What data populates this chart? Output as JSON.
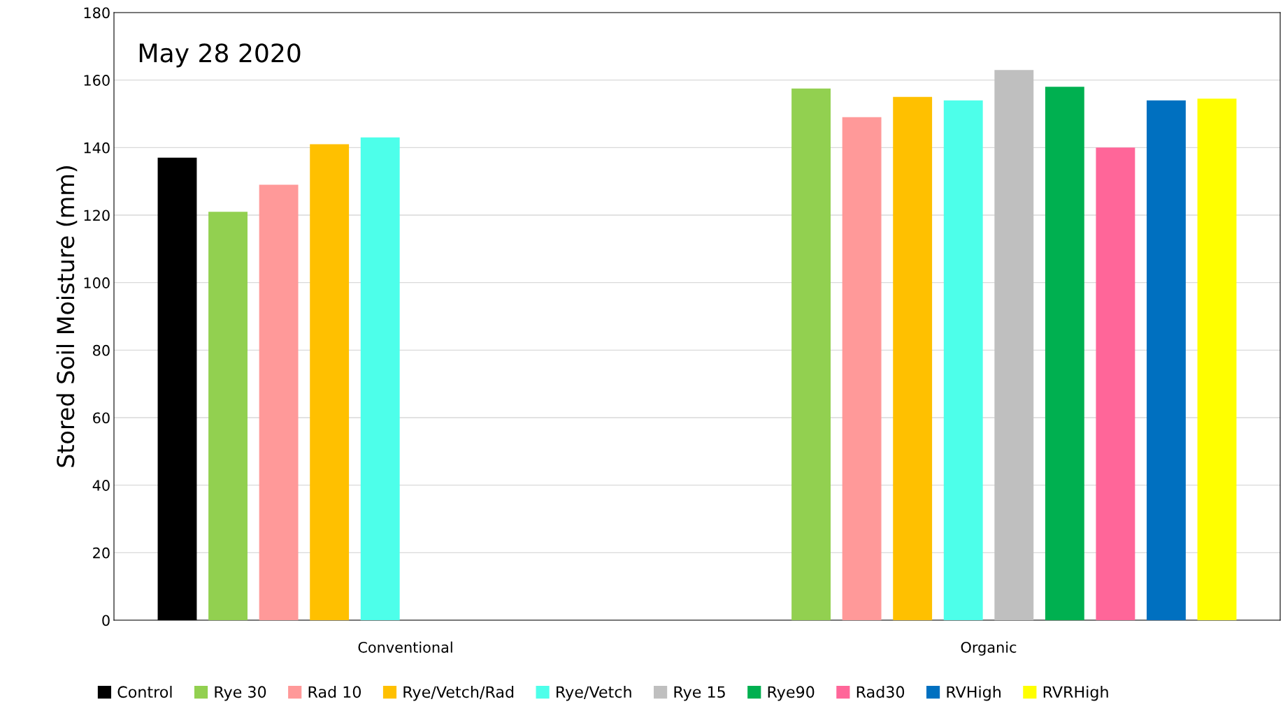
{
  "chart_data": {
    "type": "bar",
    "title": "May 28 2020",
    "ylabel": "Stored Soil Moisture (mm)",
    "categories": [
      "Conventional",
      "Organic"
    ],
    "series": [
      {
        "name": "Control",
        "color": "#000000",
        "values": [
          137,
          null
        ]
      },
      {
        "name": "Rye 30",
        "color": "#92d050",
        "values": [
          121,
          157.5
        ]
      },
      {
        "name": "Rad 10",
        "color": "#ff9999",
        "values": [
          129,
          149
        ]
      },
      {
        "name": "Rye/Vetch/Rad",
        "color": "#ffc000",
        "values": [
          141,
          155
        ]
      },
      {
        "name": "Rye/Vetch",
        "color": "#4dffea",
        "values": [
          143,
          154
        ]
      },
      {
        "name": "Rye 15",
        "color": "#bfbfbf",
        "values": [
          null,
          163
        ]
      },
      {
        "name": "Rye90",
        "color": "#00b050",
        "values": [
          null,
          158
        ]
      },
      {
        "name": "Rad30",
        "color": "#ff6699",
        "values": [
          null,
          140
        ]
      },
      {
        "name": "RVHigh",
        "color": "#0070c0",
        "values": [
          null,
          154
        ]
      },
      {
        "name": "RVRHigh",
        "color": "#ffff00",
        "values": [
          null,
          154.5
        ]
      }
    ],
    "ylim": [
      0,
      180
    ],
    "yticks": [
      0,
      20,
      40,
      60,
      80,
      100,
      120,
      140,
      160,
      180
    ],
    "grid": "y",
    "legend": "bottom"
  }
}
